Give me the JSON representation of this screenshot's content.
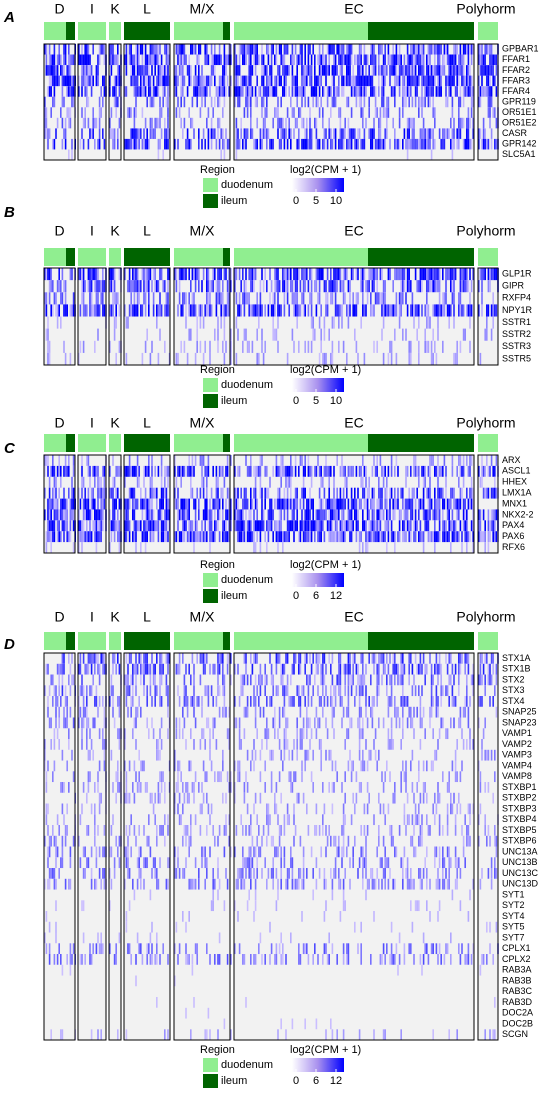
{
  "panels": [
    {
      "label": "A",
      "groups": [
        "D",
        "I",
        "K",
        "L",
        "M/X",
        "EC",
        "Polyhorm"
      ],
      "genes": [
        "GPBAR1",
        "FFAR1",
        "FFAR2",
        "FFAR3",
        "FFAR4",
        "GPR119",
        "OR51E1",
        "OR51E2",
        "CASR",
        "GPR142",
        "SLC5A1"
      ],
      "legend": {
        "region_title": "Region",
        "regions": [
          {
            "name": "duodenum",
            "color": "#90ee90"
          },
          {
            "name": "ileum",
            "color": "#006400"
          }
        ],
        "scale_title": "log2(CPM + 1)",
        "scale_ticks": [
          0,
          5,
          10
        ]
      }
    },
    {
      "label": "B",
      "groups": [
        "D",
        "I",
        "K",
        "L",
        "M/X",
        "EC",
        "Polyhorm"
      ],
      "genes": [
        "GLP1R",
        "GIPR",
        "RXFP4",
        "NPY1R",
        "SSTR1",
        "SSTR2",
        "SSTR3",
        "SSTR5"
      ],
      "legend": {
        "region_title": "Region",
        "regions": [
          {
            "name": "duodenum",
            "color": "#90ee90"
          },
          {
            "name": "ileum",
            "color": "#006400"
          }
        ],
        "scale_title": "log2(CPM + 1)",
        "scale_ticks": [
          0,
          5,
          10
        ]
      }
    },
    {
      "label": "C",
      "groups": [
        "D",
        "I",
        "K",
        "L",
        "M/X",
        "EC",
        "Polyhorm"
      ],
      "genes": [
        "ARX",
        "ASCL1",
        "HHEX",
        "LMX1A",
        "MNX1",
        "NKX2-2",
        "PAX4",
        "PAX6",
        "RFX6"
      ],
      "legend": {
        "region_title": "Region",
        "regions": [
          {
            "name": "duodenum",
            "color": "#90ee90"
          },
          {
            "name": "ileum",
            "color": "#006400"
          }
        ],
        "scale_title": "log2(CPM + 1)",
        "scale_ticks": [
          0,
          6,
          12
        ]
      }
    },
    {
      "label": "D",
      "groups": [
        "D",
        "I",
        "K",
        "L",
        "M/X",
        "EC",
        "Polyhorm"
      ],
      "genes": [
        "STX1A",
        "STX1B",
        "STX2",
        "STX3",
        "STX4",
        "SNAP25",
        "SNAP23",
        "VAMP1",
        "VAMP2",
        "VAMP3",
        "VAMP4",
        "VAMP8",
        "STXBP1",
        "STXBP2",
        "STXBP3",
        "STXBP4",
        "STXBP5",
        "STXBP6",
        "UNC13A",
        "UNC13B",
        "UNC13C",
        "UNC13D",
        "SYT1",
        "SYT2",
        "SYT4",
        "SYT5",
        "SYT7",
        "CPLX1",
        "CPLX2",
        "RAB3A",
        "RAB3B",
        "RAB3C",
        "RAB3D",
        "DOC2A",
        "DOC2B",
        "SCGN"
      ],
      "legend": {
        "region_title": "Region",
        "regions": [
          {
            "name": "duodenum",
            "color": "#90ee90"
          },
          {
            "name": "ileum",
            "color": "#006400"
          }
        ],
        "scale_title": "log2(CPM + 1)",
        "scale_ticks": [
          0,
          6,
          12
        ]
      }
    }
  ]
}
